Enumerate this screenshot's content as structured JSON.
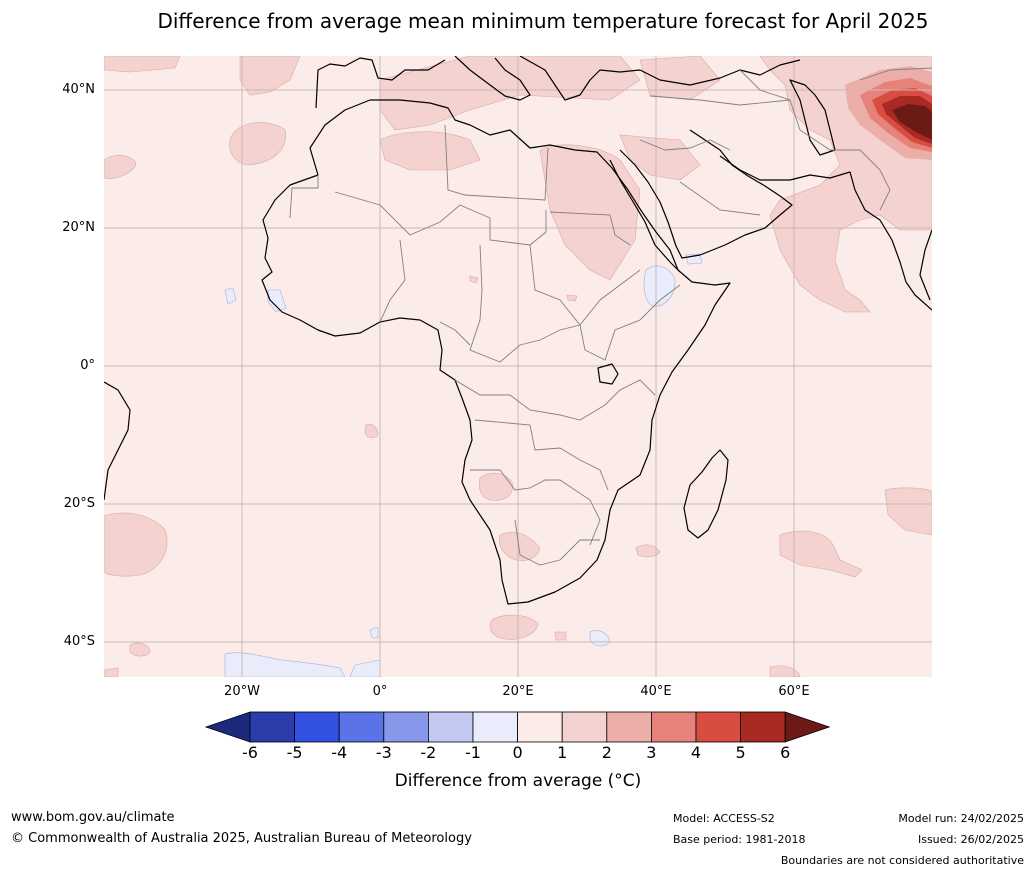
{
  "title": "Difference from average mean minimum temperature forecast for April 2025",
  "map": {
    "lat_labels": [
      "40°N",
      "20°N",
      "0°",
      "20°S",
      "40°S"
    ],
    "lon_labels": [
      "20°W",
      "0°",
      "20°E",
      "40°E",
      "60°E"
    ],
    "background_anomaly_class": "0 to 1",
    "colors": {
      "ocean_land_base": "#fbebe9",
      "warm_1_2": "#f4d2cf",
      "warm_2_3": "#ecaea9",
      "warm_3_4": "#e6827a",
      "warm_4_5": "#d84c42",
      "warm_5_6": "#a82a22",
      "warm_6_plus": "#6b1a16",
      "cool_0_1": "#e9ecfa",
      "coast": "#000000",
      "border": "#808080",
      "grid": "#c9b8b6"
    }
  },
  "colorbar": {
    "title": "Difference from average (°C)",
    "tick_labels": [
      "-6",
      "-5",
      "-4",
      "-3",
      "-2",
      "-1",
      "0",
      "1",
      "2",
      "3",
      "4",
      "5",
      "6"
    ],
    "segment_colors": [
      "#1b2a7a",
      "#2a3daa",
      "#3351e0",
      "#5a73e6",
      "#8797ea",
      "#c3c9f3",
      "#ebecfb",
      "#fbebe9",
      "#f4d2cf",
      "#ecaea9",
      "#e6827a",
      "#d84c42",
      "#a82a22",
      "#6b1a16"
    ]
  },
  "footer": {
    "website": "www.bom.gov.au/climate",
    "copyright": "© Commonwealth of Australia 2025, Australian Bureau of Meteorology",
    "model": "Model: ACCESS-S2",
    "base_period": "Base period: 1981-2018",
    "model_run": "Model run: 24/02/2025",
    "issued": "Issued: 26/02/2025",
    "disclaimer": "Boundaries are not considered authoritative"
  }
}
